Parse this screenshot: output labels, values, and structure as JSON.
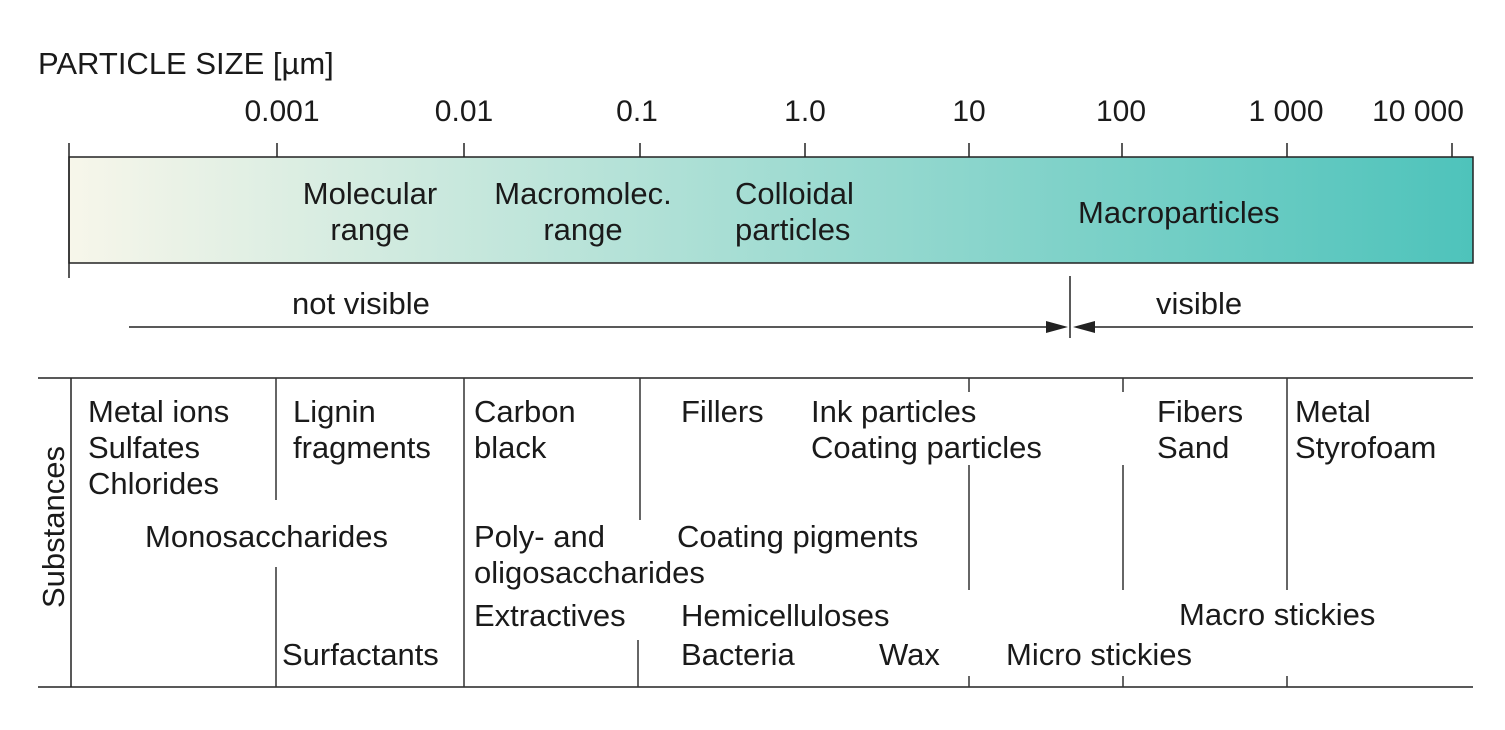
{
  "axis": {
    "title": "PARTICLE SIZE [µm]",
    "ticks": [
      "0.001",
      "0.01",
      "0.1",
      "1.0",
      "10",
      "100",
      "1 000",
      "10 000"
    ]
  },
  "size_ranges": [
    {
      "label": "Molecular range"
    },
    {
      "label": "Macromolec. range"
    },
    {
      "label": "Colloidal particles"
    },
    {
      "label": "Macroparticles"
    }
  ],
  "size_ranges_lines": {
    "molecular": [
      "Molecular",
      "range"
    ],
    "macromolec": [
      "Macromolec.",
      "range"
    ],
    "colloidal": [
      "Colloidal",
      "particles"
    ],
    "macro": "Macroparticles"
  },
  "visibility": {
    "not_visible": "not visible",
    "visible": "visible"
  },
  "gradient": {
    "start_color": "#f7f6ea",
    "end_color": "#4ec3bb"
  },
  "substances": {
    "row_label": "Substances",
    "metal_ions": [
      "Metal ions",
      "Sulfates",
      "Chlorides"
    ],
    "lignin": [
      "Lignin",
      "fragments"
    ],
    "carbon": [
      "Carbon",
      "black"
    ],
    "fillers": "Fillers",
    "ink": [
      "Ink particles",
      "Coating particles"
    ],
    "fibers": [
      "Fibers",
      "Sand"
    ],
    "metal": [
      "Metal",
      "Styrofoam"
    ],
    "monosaccharides": "Monosaccharides",
    "polysaccharides": [
      "Poly- and",
      "oligosaccharides"
    ],
    "coating_pigments": "Coating pigments",
    "extractives": "Extractives",
    "hemicelluloses": "Hemicelluloses",
    "macro_stickies": "Macro stickies",
    "surfactants": "Surfactants",
    "bacteria": "Bacteria",
    "wax": "Wax",
    "micro_stickies": "Micro stickies"
  }
}
